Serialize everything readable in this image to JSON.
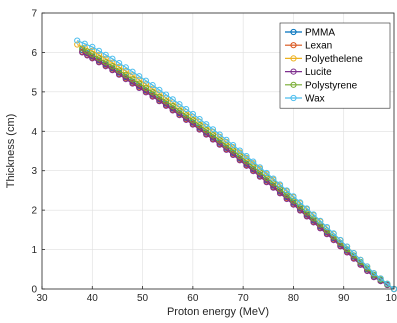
{
  "chart_data": {
    "type": "line",
    "title": "",
    "xlabel": "Proton energy (MeV)",
    "ylabel": "Thickness (cm)",
    "xlim": [
      30,
      100
    ],
    "ylim": [
      0,
      7
    ],
    "xticks": [
      30,
      40,
      50,
      60,
      70,
      80,
      90,
      100
    ],
    "yticks": [
      0,
      1,
      2,
      3,
      4,
      5,
      6,
      7
    ],
    "grid": true,
    "legend_position": "top-right",
    "marker": "open-circle",
    "series": [
      {
        "name": "PMMA",
        "color": "#0072BD",
        "x": [
          38,
          40,
          44,
          48,
          52,
          56,
          60,
          64,
          68,
          72,
          76,
          80,
          84,
          88,
          92,
          96,
          100
        ],
        "y": [
          6.06,
          5.9,
          5.6,
          5.26,
          4.93,
          4.58,
          4.22,
          3.84,
          3.45,
          3.04,
          2.62,
          2.19,
          1.74,
          1.29,
          0.82,
          0.34,
          0.0
        ]
      },
      {
        "name": "Lexan",
        "color": "#D95319",
        "x": [
          38,
          40,
          44,
          48,
          52,
          56,
          60,
          64,
          68,
          72,
          76,
          80,
          84,
          88,
          92,
          96,
          100
        ],
        "y": [
          6.02,
          5.87,
          5.57,
          5.23,
          4.9,
          4.55,
          4.19,
          3.81,
          3.42,
          3.01,
          2.59,
          2.16,
          1.71,
          1.26,
          0.79,
          0.31,
          0.0
        ]
      },
      {
        "name": "Polyethelene",
        "color": "#EDB120",
        "x": [
          37,
          40,
          44,
          48,
          52,
          56,
          60,
          64,
          68,
          72,
          76,
          80,
          84,
          88,
          92,
          96,
          100
        ],
        "y": [
          6.2,
          6.04,
          5.74,
          5.42,
          5.08,
          4.73,
          4.37,
          3.99,
          3.6,
          3.19,
          2.77,
          2.33,
          1.87,
          1.4,
          0.91,
          0.4,
          0.0
        ]
      },
      {
        "name": "Lucite",
        "color": "#7E2F8E",
        "x": [
          38,
          40,
          44,
          48,
          52,
          56,
          60,
          64,
          68,
          72,
          76,
          80,
          84,
          88,
          92,
          96,
          100
        ],
        "y": [
          6.0,
          5.85,
          5.55,
          5.21,
          4.88,
          4.53,
          4.17,
          3.79,
          3.4,
          2.99,
          2.57,
          2.14,
          1.69,
          1.24,
          0.77,
          0.3,
          0.0
        ]
      },
      {
        "name": "Polystyrene",
        "color": "#77AC30",
        "x": [
          38,
          40,
          44,
          48,
          52,
          56,
          60,
          64,
          68,
          72,
          76,
          80,
          84,
          88,
          92,
          96,
          100
        ],
        "y": [
          6.1,
          5.95,
          5.65,
          5.32,
          4.99,
          4.64,
          4.28,
          3.9,
          3.51,
          3.1,
          2.68,
          2.24,
          1.79,
          1.33,
          0.85,
          0.36,
          0.0
        ]
      },
      {
        "name": "Wax",
        "color": "#4DBEEE",
        "x": [
          37,
          40,
          44,
          48,
          52,
          56,
          60,
          64,
          68,
          72,
          76,
          80,
          84,
          88,
          92,
          96,
          100
        ],
        "y": [
          6.3,
          6.14,
          5.84,
          5.51,
          5.17,
          4.81,
          4.44,
          4.05,
          3.65,
          3.23,
          2.8,
          2.35,
          1.89,
          1.41,
          0.91,
          0.4,
          0.0
        ]
      }
    ]
  }
}
